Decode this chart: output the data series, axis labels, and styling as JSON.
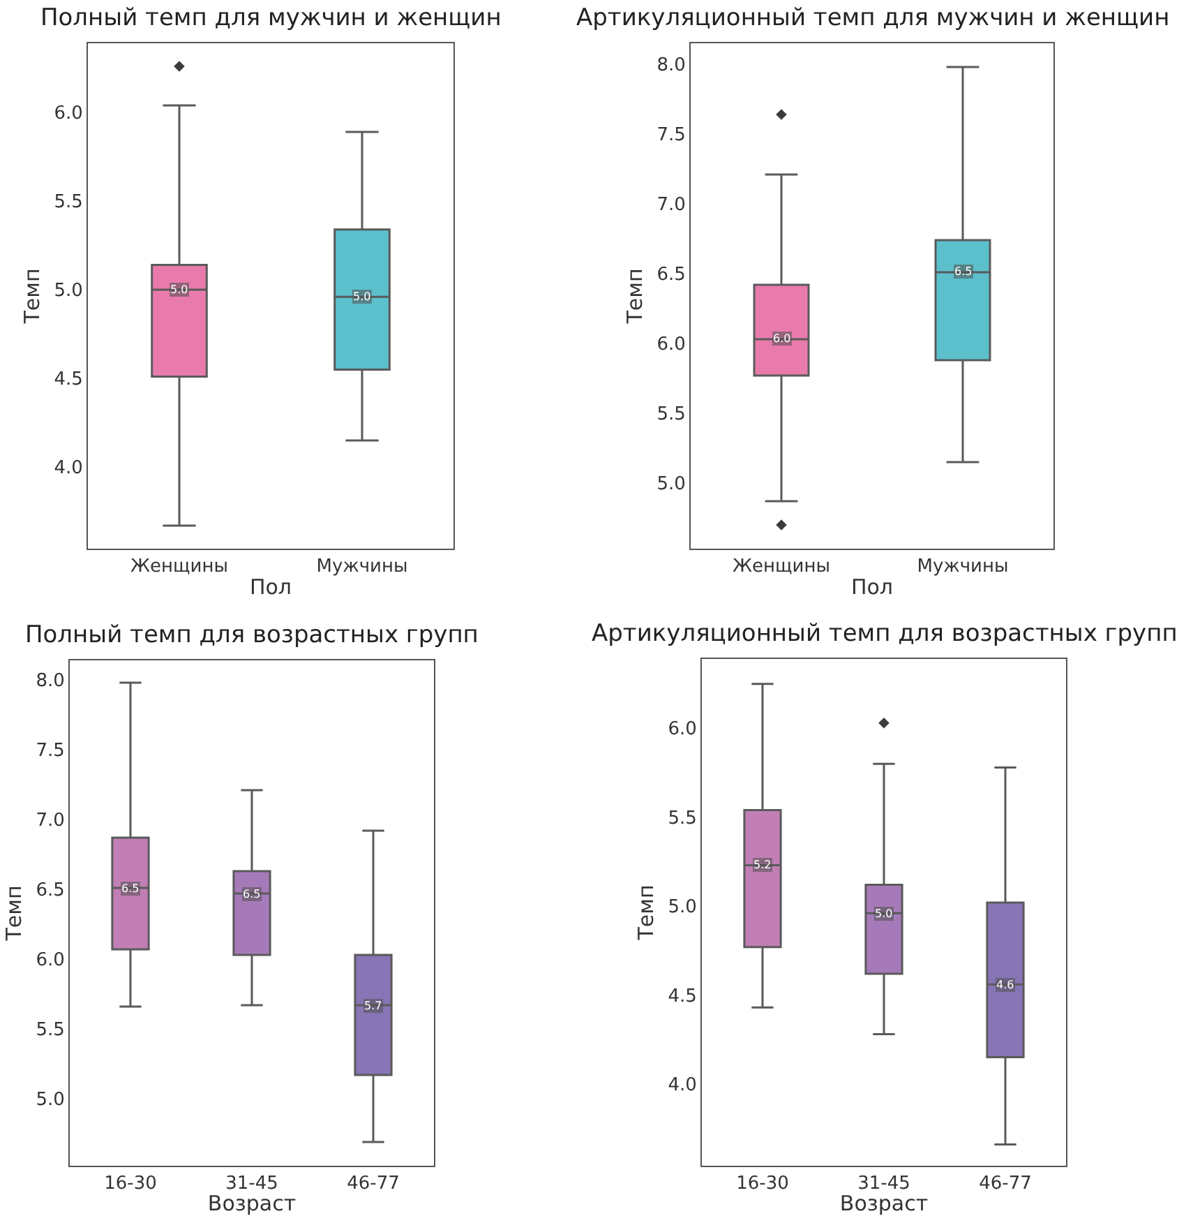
{
  "chart_data": [
    {
      "type": "box",
      "title": "Полный темп для мужчин и женщин",
      "xlabel": "Пол",
      "ylabel": "Темп",
      "categories": [
        "Женщины",
        "Мужчины"
      ],
      "colors": [
        "#e87bac",
        "#5bc0cc"
      ],
      "marker": "diamond",
      "ylim": [
        3.54,
        6.39
      ],
      "yticks": [
        {
          "value": 4,
          "label": "4.0"
        },
        4.5,
        {
          "value": 5,
          "label": "5.0"
        },
        5.5,
        {
          "value": 6,
          "label": "6.0"
        }
      ],
      "boxes": [
        {
          "low": 3.67,
          "q1": 4.51,
          "median": 5.0,
          "q3": 5.14,
          "high": 6.04,
          "outliers": [
            6.26
          ]
        },
        {
          "low": 4.15,
          "q1": 4.55,
          "median": 4.96,
          "q3": 5.34,
          "high": 5.89
        }
      ],
      "value_labels": [
        "5.0",
        "5.0"
      ]
    },
    {
      "type": "box",
      "title": "Артикуляционный темп для мужчин и женщин",
      "xlabel": "Пол",
      "ylabel": "Темп",
      "categories": [
        "Женщины",
        "Мужчины"
      ],
      "colors": [
        "#e87bac",
        "#5bc0cc"
      ],
      "marker": "diamond",
      "ylim": [
        4.53,
        8.15
      ],
      "yticks": [
        {
          "value": 5,
          "label": "5.0"
        },
        5.5,
        {
          "value": 6,
          "label": "6.0"
        },
        6.5,
        {
          "value": 7,
          "label": "7.0"
        },
        7.5,
        {
          "value": 8,
          "label": "8.0"
        }
      ],
      "boxes": [
        {
          "low": 4.87,
          "q1": 5.77,
          "median": 6.03,
          "q3": 6.42,
          "high": 7.21,
          "outliers": [
            7.64,
            4.7
          ]
        },
        {
          "low": 5.15,
          "q1": 5.88,
          "median": 6.51,
          "q3": 6.74,
          "high": 7.98
        }
      ],
      "value_labels": [
        "6.0",
        "6.5"
      ]
    },
    {
      "type": "box",
      "title": "Полный темп для возрастных групп",
      "xlabel": "Возраст",
      "ylabel": "Темп",
      "categories": [
        "16-30",
        "31-45",
        "46-77"
      ],
      "colors": [
        "#c17fb5",
        "#a67ab8",
        "#8775b5"
      ],
      "marker": "diamond",
      "ylim": [
        4.52,
        8.14
      ],
      "yticks": [
        {
          "value": 5,
          "label": "5.0"
        },
        5.5,
        {
          "value": 6,
          "label": "6.0"
        },
        6.5,
        {
          "value": 7,
          "label": "7.0"
        },
        7.5,
        {
          "value": 8,
          "label": "8.0"
        }
      ],
      "boxes": [
        {
          "low": 5.66,
          "q1": 6.07,
          "median": 6.51,
          "q3": 6.87,
          "high": 7.98
        },
        {
          "low": 5.67,
          "q1": 6.03,
          "median": 6.47,
          "q3": 6.63,
          "high": 7.21
        },
        {
          "low": 4.69,
          "q1": 5.17,
          "median": 5.67,
          "q3": 6.03,
          "high": 6.92
        }
      ],
      "value_labels": [
        "6.5",
        "6.5",
        "5.7"
      ]
    },
    {
      "type": "box",
      "title": "Артикуляционный темп для возрастных групп",
      "xlabel": "Возраст",
      "ylabel": "Темп",
      "categories": [
        "16-30",
        "31-45",
        "46-77"
      ],
      "colors": [
        "#c17fb5",
        "#a67ab8",
        "#8775b5"
      ],
      "marker": "diamond",
      "ylim": [
        3.54,
        6.39
      ],
      "yticks": [
        {
          "value": 4,
          "label": "4.0"
        },
        4.5,
        {
          "value": 5,
          "label": "5.0"
        },
        5.5,
        {
          "value": 6,
          "label": "6.0"
        }
      ],
      "boxes": [
        {
          "low": 4.43,
          "q1": 4.77,
          "median": 5.23,
          "q3": 5.54,
          "high": 6.25
        },
        {
          "low": 4.28,
          "q1": 4.62,
          "median": 4.96,
          "q3": 5.12,
          "high": 5.8,
          "outliers": [
            6.03
          ]
        },
        {
          "low": 3.66,
          "q1": 4.15,
          "median": 4.56,
          "q3": 5.02,
          "high": 5.78
        }
      ],
      "value_labels": [
        "5.2",
        "5.0",
        "4.6"
      ]
    }
  ]
}
